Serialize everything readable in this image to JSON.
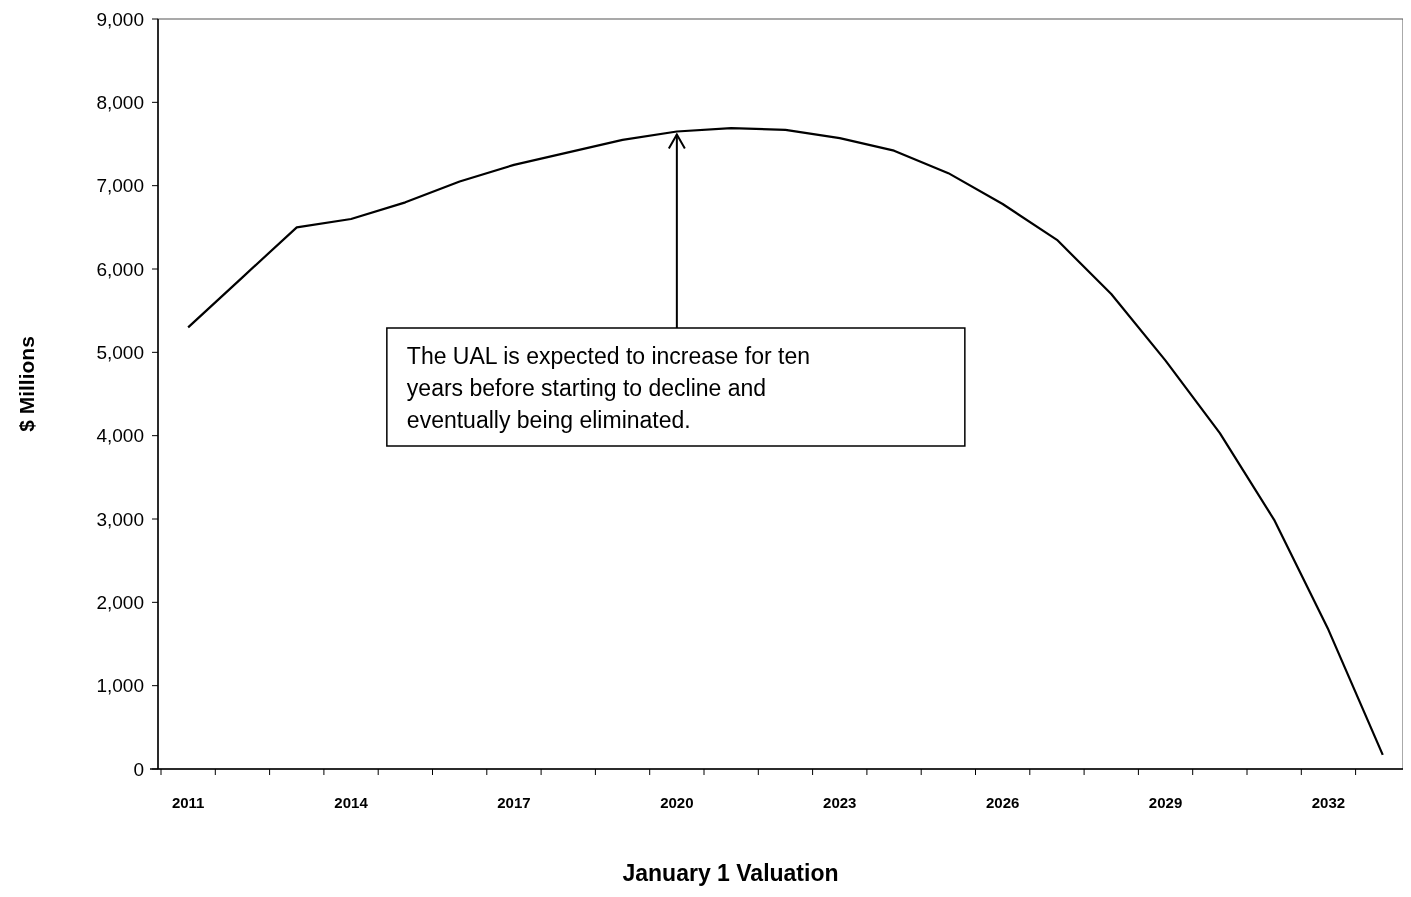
{
  "chart_data": {
    "type": "line",
    "xlabel": "January 1 Valuation",
    "ylabel": "$ Millions",
    "categories": [
      "2011",
      null,
      null,
      "2014",
      null,
      null,
      "2017",
      null,
      null,
      "2020",
      null,
      null,
      "2023",
      null,
      null,
      "2026",
      null,
      null,
      "2029",
      null,
      null,
      "2032",
      null
    ],
    "series": [
      {
        "color": "#000000",
        "values": [
          5300,
          5900,
          6500,
          6600,
          6800,
          7050,
          7250,
          7400,
          7550,
          7650,
          7690,
          7670,
          7570,
          7420,
          7150,
          6780,
          6350,
          5700,
          4900,
          4030,
          2990,
          1670,
          170
        ]
      }
    ],
    "ylim": [
      0,
      9000
    ],
    "yticks": [
      {
        "value": 0,
        "label": "0"
      },
      {
        "value": 1000,
        "label": "1,000"
      },
      {
        "value": 2000,
        "label": "2,000"
      },
      {
        "value": 3000,
        "label": "3,000"
      },
      {
        "value": 4000,
        "label": "4,000"
      },
      {
        "value": 5000,
        "label": "5,000"
      },
      {
        "value": 6000,
        "label": "6,000"
      },
      {
        "value": 7000,
        "label": "7,000"
      },
      {
        "value": 8000,
        "label": "8,000"
      },
      {
        "value": 9000,
        "label": "9,000"
      }
    ],
    "grid": false,
    "line_style": "solid",
    "annotations": [
      {
        "text": "The UAL is expected to increase for ten years before starting to decline and eventually being eliminated.",
        "x": "2020",
        "y": 7650
      }
    ]
  }
}
